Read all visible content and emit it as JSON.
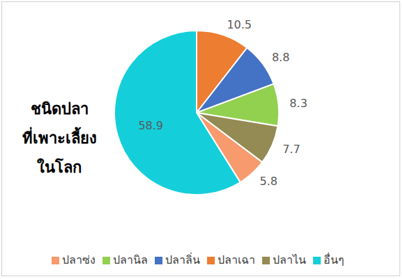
{
  "chart_data": {
    "type": "pie",
    "title": "ชนิดปลา\nที่เพาะเลี้ยง\nในโลก",
    "categories": [
      "ปลาเฉา",
      "ปลาลิ่น",
      "ปลานิล",
      "ปลาไน",
      "ปลาซ่ง",
      "อื่นๆ"
    ],
    "values": [
      10.5,
      8.8,
      8.3,
      7.7,
      5.8,
      58.9
    ],
    "colors": [
      "#ED7D31",
      "#4472C4",
      "#92D050",
      "#948A54",
      "#F79A6E",
      "#14CFDA"
    ],
    "data_labels": true,
    "legend": "bottom"
  }
}
